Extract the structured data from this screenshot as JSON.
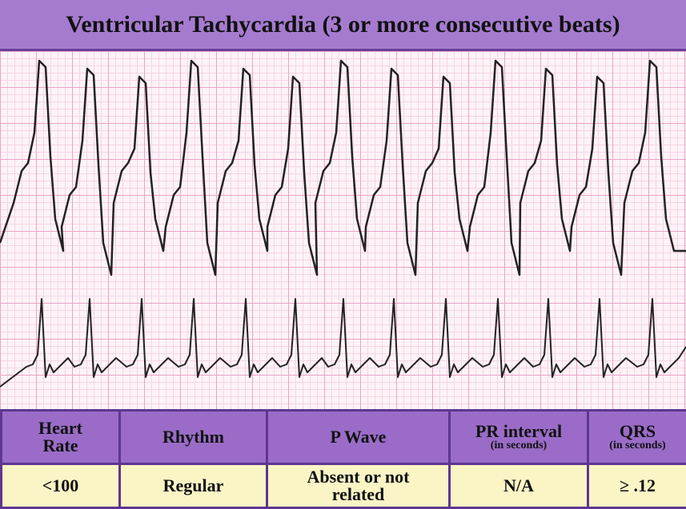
{
  "title": "Ventricular Tachycardia (3 or more consecutive beats)",
  "table": {
    "headers": [
      {
        "label": "Heart Rate"
      },
      {
        "label": "Rhythm"
      },
      {
        "label": "P Wave"
      },
      {
        "label": "PR interval",
        "note": "(in seconds)"
      },
      {
        "label": "QRS",
        "note": "(in seconds)"
      }
    ],
    "rows": [
      [
        "<100",
        "Regular",
        "Absent or not related",
        "N/A",
        "≥ .12"
      ]
    ]
  }
}
